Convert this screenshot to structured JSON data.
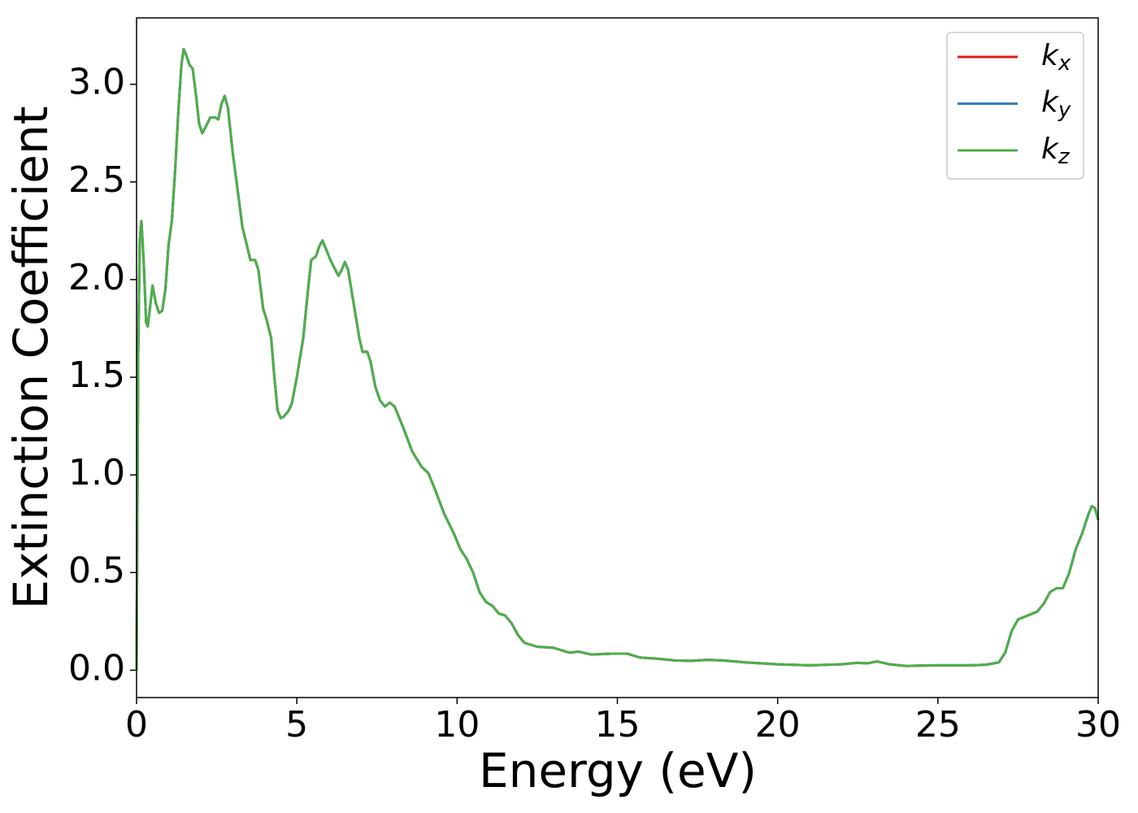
{
  "chart_data": {
    "type": "line",
    "xlabel": "Energy (eV)",
    "ylabel": "Extinction Coefficient",
    "x": [
      0,
      0.05,
      0.1,
      0.15,
      0.22,
      0.3,
      0.35,
      0.45,
      0.5,
      0.6,
      0.7,
      0.8,
      0.9,
      1.0,
      1.1,
      1.2,
      1.3,
      1.4,
      1.47,
      1.55,
      1.65,
      1.75,
      1.85,
      1.95,
      2.05,
      2.15,
      2.3,
      2.45,
      2.55,
      2.65,
      2.75,
      2.85,
      3.0,
      3.2,
      3.3,
      3.45,
      3.55,
      3.7,
      3.8,
      3.95,
      4.05,
      4.2,
      4.3,
      4.4,
      4.5,
      4.6,
      4.75,
      4.85,
      5.0,
      5.2,
      5.35,
      5.45,
      5.6,
      5.7,
      5.8,
      5.9,
      6.05,
      6.2,
      6.3,
      6.4,
      6.5,
      6.6,
      6.8,
      6.95,
      7.05,
      7.2,
      7.3,
      7.45,
      7.6,
      7.75,
      7.9,
      8.05,
      8.3,
      8.6,
      8.9,
      9.1,
      9.3,
      9.6,
      9.9,
      10.1,
      10.3,
      10.5,
      10.7,
      10.9,
      11.1,
      11.3,
      11.5,
      11.7,
      11.9,
      12.1,
      12.5,
      13.0,
      13.5,
      13.8,
      14.2,
      14.8,
      15.3,
      15.7,
      16.3,
      16.8,
      17.3,
      17.8,
      18.3,
      19.0,
      20.0,
      21.0,
      22.0,
      22.5,
      22.8,
      23.1,
      23.5,
      24.0,
      25.0,
      26.0,
      26.5,
      26.9,
      27.1,
      27.3,
      27.5,
      27.8,
      28.1,
      28.3,
      28.5,
      28.7,
      28.9,
      29.1,
      29.3,
      29.5,
      29.7,
      29.8,
      29.9,
      30.0
    ],
    "series": [
      {
        "name": "kx",
        "color": "#e41a1c",
        "values": [
          0,
          1.6,
          2.2,
          2.3,
          2.1,
          1.78,
          1.76,
          1.9,
          1.97,
          1.88,
          1.83,
          1.84,
          1.95,
          2.18,
          2.3,
          2.55,
          2.85,
          3.1,
          3.18,
          3.15,
          3.1,
          3.08,
          2.95,
          2.8,
          2.75,
          2.78,
          2.83,
          2.83,
          2.82,
          2.9,
          2.94,
          2.88,
          2.65,
          2.4,
          2.27,
          2.17,
          2.1,
          2.1,
          2.05,
          1.85,
          1.8,
          1.7,
          1.5,
          1.33,
          1.29,
          1.3,
          1.33,
          1.37,
          1.5,
          1.7,
          1.95,
          2.1,
          2.12,
          2.17,
          2.2,
          2.16,
          2.1,
          2.05,
          2.02,
          2.05,
          2.09,
          2.05,
          1.85,
          1.7,
          1.63,
          1.63,
          1.58,
          1.45,
          1.38,
          1.35,
          1.37,
          1.35,
          1.25,
          1.12,
          1.04,
          1.01,
          0.93,
          0.8,
          0.7,
          0.62,
          0.57,
          0.5,
          0.4,
          0.35,
          0.33,
          0.29,
          0.28,
          0.24,
          0.18,
          0.14,
          0.12,
          0.115,
          0.09,
          0.095,
          0.08,
          0.085,
          0.085,
          0.065,
          0.058,
          0.05,
          0.048,
          0.053,
          0.05,
          0.04,
          0.03,
          0.025,
          0.03,
          0.038,
          0.035,
          0.045,
          0.03,
          0.022,
          0.025,
          0.025,
          0.028,
          0.04,
          0.09,
          0.2,
          0.26,
          0.28,
          0.3,
          0.34,
          0.4,
          0.42,
          0.42,
          0.5,
          0.62,
          0.7,
          0.8,
          0.84,
          0.83,
          0.77
        ]
      },
      {
        "name": "ky",
        "color": "#377eb8",
        "values": [
          0,
          1.6,
          2.2,
          2.3,
          2.1,
          1.78,
          1.76,
          1.9,
          1.97,
          1.88,
          1.83,
          1.84,
          1.95,
          2.18,
          2.3,
          2.55,
          2.85,
          3.1,
          3.18,
          3.15,
          3.1,
          3.08,
          2.95,
          2.8,
          2.75,
          2.78,
          2.83,
          2.83,
          2.82,
          2.9,
          2.94,
          2.88,
          2.65,
          2.4,
          2.27,
          2.17,
          2.1,
          2.1,
          2.05,
          1.85,
          1.8,
          1.7,
          1.5,
          1.33,
          1.29,
          1.3,
          1.33,
          1.37,
          1.5,
          1.7,
          1.95,
          2.1,
          2.12,
          2.17,
          2.2,
          2.16,
          2.1,
          2.05,
          2.02,
          2.05,
          2.09,
          2.05,
          1.85,
          1.7,
          1.63,
          1.63,
          1.58,
          1.45,
          1.38,
          1.35,
          1.37,
          1.35,
          1.25,
          1.12,
          1.04,
          1.01,
          0.93,
          0.8,
          0.7,
          0.62,
          0.57,
          0.5,
          0.4,
          0.35,
          0.33,
          0.29,
          0.28,
          0.24,
          0.18,
          0.14,
          0.12,
          0.115,
          0.09,
          0.095,
          0.08,
          0.085,
          0.085,
          0.065,
          0.058,
          0.05,
          0.048,
          0.053,
          0.05,
          0.04,
          0.03,
          0.025,
          0.03,
          0.038,
          0.035,
          0.045,
          0.03,
          0.022,
          0.025,
          0.025,
          0.028,
          0.04,
          0.09,
          0.2,
          0.26,
          0.28,
          0.3,
          0.34,
          0.4,
          0.42,
          0.42,
          0.5,
          0.62,
          0.7,
          0.8,
          0.84,
          0.83,
          0.77
        ]
      },
      {
        "name": "kz",
        "color": "#4daf4a",
        "values": [
          0,
          1.6,
          2.2,
          2.3,
          2.1,
          1.78,
          1.76,
          1.9,
          1.97,
          1.88,
          1.83,
          1.84,
          1.95,
          2.18,
          2.3,
          2.55,
          2.85,
          3.1,
          3.18,
          3.15,
          3.1,
          3.08,
          2.95,
          2.8,
          2.75,
          2.78,
          2.83,
          2.83,
          2.82,
          2.9,
          2.94,
          2.88,
          2.65,
          2.4,
          2.27,
          2.17,
          2.1,
          2.1,
          2.05,
          1.85,
          1.8,
          1.7,
          1.5,
          1.33,
          1.29,
          1.3,
          1.33,
          1.37,
          1.5,
          1.7,
          1.95,
          2.1,
          2.12,
          2.17,
          2.2,
          2.16,
          2.1,
          2.05,
          2.02,
          2.05,
          2.09,
          2.05,
          1.85,
          1.7,
          1.63,
          1.63,
          1.58,
          1.45,
          1.38,
          1.35,
          1.37,
          1.35,
          1.25,
          1.12,
          1.04,
          1.01,
          0.93,
          0.8,
          0.7,
          0.62,
          0.57,
          0.5,
          0.4,
          0.35,
          0.33,
          0.29,
          0.28,
          0.24,
          0.18,
          0.14,
          0.12,
          0.115,
          0.09,
          0.095,
          0.08,
          0.085,
          0.085,
          0.065,
          0.058,
          0.05,
          0.048,
          0.053,
          0.05,
          0.04,
          0.03,
          0.025,
          0.03,
          0.038,
          0.035,
          0.045,
          0.03,
          0.022,
          0.025,
          0.025,
          0.028,
          0.04,
          0.09,
          0.2,
          0.26,
          0.28,
          0.3,
          0.34,
          0.4,
          0.42,
          0.42,
          0.5,
          0.62,
          0.7,
          0.8,
          0.84,
          0.83,
          0.77
        ]
      }
    ],
    "xlim": [
      0,
      30
    ],
    "xticks": [
      0,
      5,
      10,
      15,
      20,
      25,
      30
    ],
    "ylim": [
      -0.14,
      3.34
    ],
    "yticks": [
      {
        "value": 0,
        "label": "0.0"
      },
      {
        "value": 0.5,
        "label": "0.5"
      },
      {
        "value": 1,
        "label": "1.0"
      },
      {
        "value": 1.5,
        "label": "1.5"
      },
      {
        "value": 2,
        "label": "2.0"
      },
      {
        "value": 2.5,
        "label": "2.5"
      },
      {
        "value": 3,
        "label": "3.0"
      }
    ],
    "grid": false,
    "legend": "upper right"
  }
}
